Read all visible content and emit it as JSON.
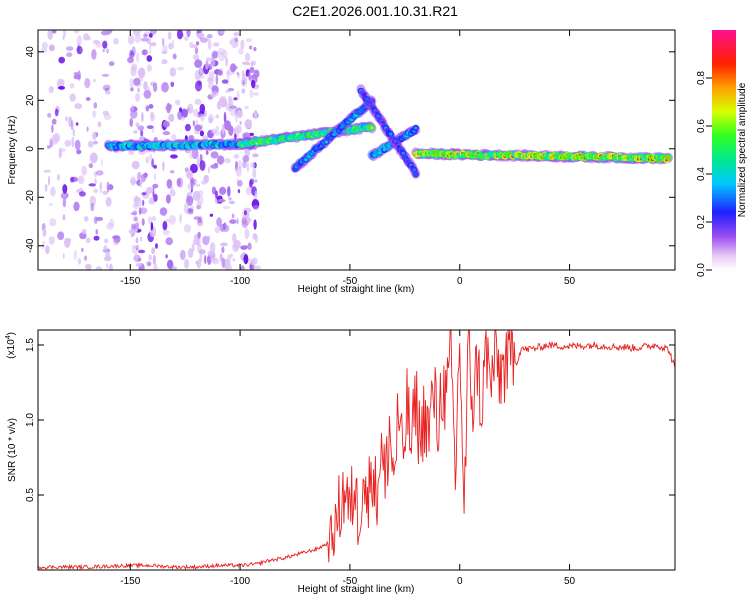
{
  "figure": {
    "title": "C2E1.2026.001.10.31.R21"
  },
  "colors": {
    "noise_purple": "#7a1fe0",
    "snr_line": "#e82020",
    "frame": "#000000"
  },
  "chart_data": [
    {
      "type": "heatmap",
      "name": "spectrogram",
      "title": "",
      "xlabel": "Height of straight line (km)",
      "ylabel": "Frequency (Hz)",
      "xlim": [
        -192,
        98
      ],
      "ylim": [
        -50,
        49
      ],
      "x_ticks": [
        -150,
        -100,
        -50,
        0,
        50
      ],
      "y_ticks": [
        -40,
        -20,
        0,
        20,
        40
      ],
      "colorbar": {
        "label": "Normalized spectral amplitude",
        "range": [
          0.0,
          1.0
        ],
        "ticks": [
          0.0,
          0.2,
          0.4,
          0.6,
          0.8
        ],
        "tick_labels": [
          "0.0",
          "0.2",
          "0.4",
          "0.6",
          "0.8"
        ],
        "colormap": "rainbow (white, violet, blue, cyan, green, yellow, red, magenta)"
      },
      "features": [
        {
          "kind": "noise_cloud",
          "x_range": [
            -192,
            -96
          ],
          "freq_range": [
            -50,
            49
          ],
          "amplitude": 0.1
        },
        {
          "kind": "ridge",
          "x_range": [
            -160,
            -95
          ],
          "freq_start": 1,
          "freq_end": 2,
          "amplitude": 0.55
        },
        {
          "kind": "ridge",
          "x_range": [
            -100,
            -40
          ],
          "freq_start": 2,
          "freq_end": 9,
          "amplitude": 0.75
        },
        {
          "kind": "ridge",
          "x_range": [
            -75,
            -40
          ],
          "freq_start": -8,
          "freq_end": 20,
          "amplitude": 0.45
        },
        {
          "kind": "ridge",
          "x_range": [
            -40,
            -20
          ],
          "freq_start": -3,
          "freq_end": 8,
          "amplitude": 0.5
        },
        {
          "kind": "ridge",
          "x_range": [
            -45,
            -20
          ],
          "freq_start": 24,
          "freq_end": -10,
          "amplitude": 0.35
        },
        {
          "kind": "ridge",
          "x_range": [
            -20,
            95
          ],
          "freq_start": -2,
          "freq_end": -4,
          "amplitude": 0.95
        }
      ]
    },
    {
      "type": "line",
      "name": "snr",
      "title": "",
      "xlabel": "Height of straight line (km)",
      "ylabel": "SNR (10 * v/v)",
      "y_multiplier": "(x10^4)",
      "xlim": [
        -192,
        98
      ],
      "ylim": [
        0,
        1.6
      ],
      "x_ticks": [
        -150,
        -100,
        -50,
        0,
        50
      ],
      "y_ticks": [
        0.5,
        1.0,
        1.5
      ],
      "y_tick_labels": [
        "0.5",
        "1.0",
        "1.5"
      ],
      "series": [
        {
          "name": "SNR",
          "x": [
            -192,
            -170,
            -150,
            -140,
            -130,
            -120,
            -110,
            -100,
            -92,
            -88,
            -84,
            -80,
            -75,
            -70,
            -65,
            -60,
            -57,
            -55,
            -52,
            -50,
            -48,
            -46,
            -44,
            -42,
            -40,
            -38,
            -36,
            -34,
            -32,
            -30,
            -28,
            -26,
            -24,
            -22,
            -20,
            -18,
            -16,
            -14,
            -12,
            -10,
            -8,
            -6,
            -4,
            -2,
            0,
            2,
            4,
            6,
            8,
            10,
            12,
            14,
            16,
            18,
            20,
            22,
            24,
            26,
            28,
            30,
            35,
            40,
            50,
            60,
            70,
            80,
            90,
            95,
            98
          ],
          "values": [
            0.02,
            0.02,
            0.03,
            0.03,
            0.02,
            0.02,
            0.03,
            0.03,
            0.04,
            0.06,
            0.07,
            0.08,
            0.1,
            0.12,
            0.14,
            0.18,
            0.25,
            0.4,
            0.55,
            0.35,
            0.6,
            0.3,
            0.7,
            0.4,
            0.75,
            0.45,
            0.85,
            0.55,
            0.95,
            0.6,
            1.05,
            0.7,
            1.1,
            0.8,
            1.15,
            0.85,
            1.05,
            0.9,
            1.2,
            0.95,
            1.25,
            1.1,
            1.45,
            0.6,
            1.58,
            0.35,
            1.5,
            1.1,
            1.4,
            1.05,
            1.5,
            1.2,
            1.45,
            1.3,
            1.35,
            1.4,
            1.45,
            1.38,
            1.48,
            1.47,
            1.48,
            1.5,
            1.49,
            1.5,
            1.49,
            1.48,
            1.5,
            1.47,
            1.35
          ]
        }
      ]
    }
  ]
}
